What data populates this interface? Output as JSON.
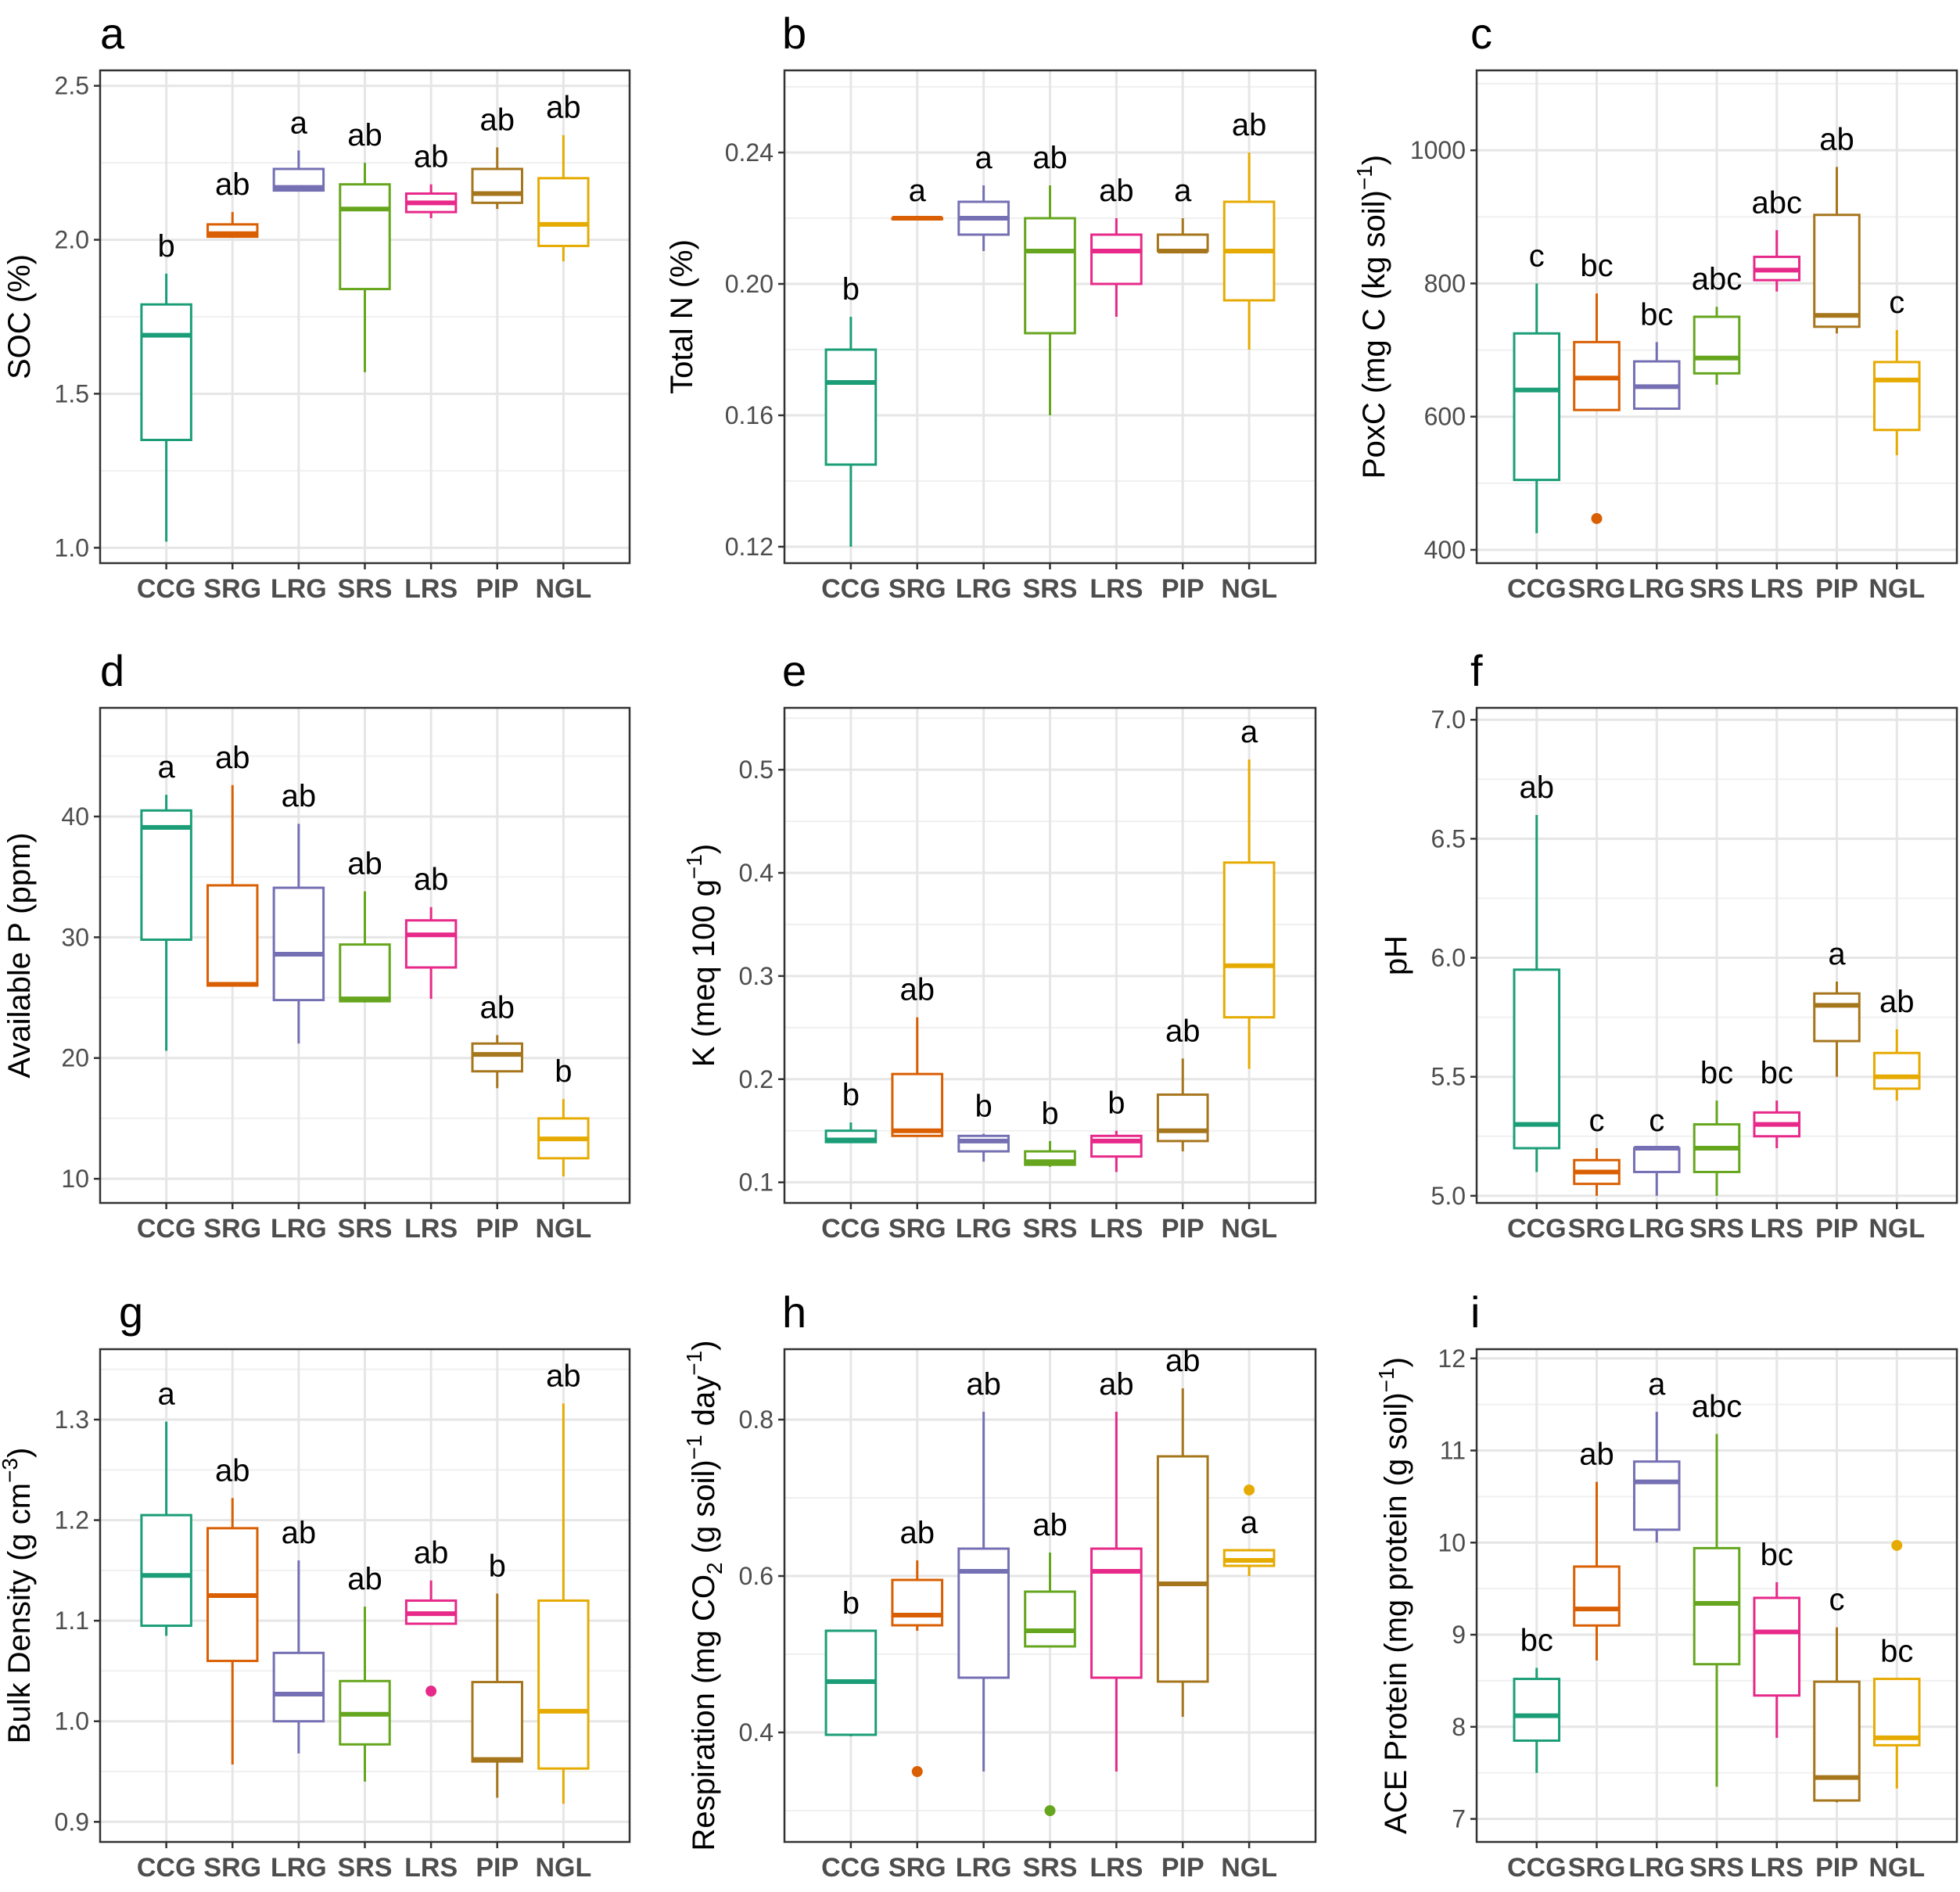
{
  "groups": [
    "CCG",
    "SRG",
    "LRG",
    "SRS",
    "LRS",
    "PIP",
    "NGL"
  ],
  "colors": [
    "#1b9e77",
    "#d95f02",
    "#7570b3",
    "#66a61e",
    "#e7298a",
    "#a6761d",
    "#e6ab02"
  ],
  "chart_data": [
    {
      "type": "boxplot",
      "panel_label": "a",
      "ylabel": "SOC (%)",
      "ylim": [
        0.95,
        2.55
      ],
      "yticks": [
        1.0,
        1.5,
        2.0,
        2.5
      ],
      "ytick_labels": [
        "1.0",
        "1.5",
        "2.0",
        "2.5"
      ],
      "categories": [
        "CCG",
        "SRG",
        "LRG",
        "SRS",
        "LRS",
        "PIP",
        "NGL"
      ],
      "boxes": [
        {
          "low": 1.02,
          "q1": 1.35,
          "median": 1.69,
          "q3": 1.79,
          "high": 1.89,
          "outliers": []
        },
        {
          "low": 2.01,
          "q1": 2.01,
          "median": 2.02,
          "q3": 2.05,
          "high": 2.09,
          "outliers": []
        },
        {
          "low": 2.16,
          "q1": 2.16,
          "median": 2.17,
          "q3": 2.23,
          "high": 2.29,
          "outliers": []
        },
        {
          "low": 1.57,
          "q1": 1.84,
          "median": 2.1,
          "q3": 2.18,
          "high": 2.25,
          "outliers": []
        },
        {
          "low": 2.07,
          "q1": 2.09,
          "median": 2.12,
          "q3": 2.15,
          "high": 2.18,
          "outliers": []
        },
        {
          "low": 2.1,
          "q1": 2.12,
          "median": 2.15,
          "q3": 2.23,
          "high": 2.3,
          "outliers": []
        },
        {
          "low": 1.93,
          "q1": 1.98,
          "median": 2.05,
          "q3": 2.2,
          "high": 2.34,
          "outliers": []
        }
      ],
      "letters": [
        "b",
        "ab",
        "a",
        "ab",
        "ab",
        "ab",
        "ab"
      ]
    },
    {
      "type": "boxplot",
      "panel_label": "b",
      "ylabel": "Total N (%)",
      "ylim": [
        0.115,
        0.265
      ],
      "yticks": [
        0.12,
        0.16,
        0.2,
        0.24
      ],
      "ytick_labels": [
        "0.12",
        "0.16",
        "0.20",
        "0.24"
      ],
      "categories": [
        "CCG",
        "SRG",
        "LRG",
        "SRS",
        "LRS",
        "PIP",
        "NGL"
      ],
      "boxes": [
        {
          "low": 0.12,
          "q1": 0.145,
          "median": 0.17,
          "q3": 0.18,
          "high": 0.19,
          "outliers": []
        },
        {
          "low": 0.22,
          "q1": 0.22,
          "median": 0.22,
          "q3": 0.22,
          "high": 0.22,
          "outliers": []
        },
        {
          "low": 0.21,
          "q1": 0.215,
          "median": 0.22,
          "q3": 0.225,
          "high": 0.23,
          "outliers": []
        },
        {
          "low": 0.16,
          "q1": 0.185,
          "median": 0.21,
          "q3": 0.22,
          "high": 0.23,
          "outliers": []
        },
        {
          "low": 0.19,
          "q1": 0.2,
          "median": 0.21,
          "q3": 0.215,
          "high": 0.22,
          "outliers": []
        },
        {
          "low": 0.21,
          "q1": 0.21,
          "median": 0.21,
          "q3": 0.215,
          "high": 0.22,
          "outliers": []
        },
        {
          "low": 0.18,
          "q1": 0.195,
          "median": 0.21,
          "q3": 0.225,
          "high": 0.24,
          "outliers": []
        }
      ],
      "letters": [
        "b",
        "a",
        "a",
        "ab",
        "ab",
        "a",
        "ab"
      ]
    },
    {
      "type": "boxplot",
      "panel_label": "c",
      "ylabel": "PoxC (mg C (kg soil)",
      "ylabel_sup": "−1",
      "ylabel_tail": ")",
      "ylim": [
        380,
        1120
      ],
      "yticks": [
        400,
        600,
        800,
        1000
      ],
      "ytick_labels": [
        "400",
        "600",
        "800",
        "1000"
      ],
      "categories": [
        "CCG",
        "SRG",
        "LRG",
        "SRS",
        "LRS",
        "PIP",
        "NGL"
      ],
      "boxes": [
        {
          "low": 425,
          "q1": 505,
          "median": 640,
          "q3": 725,
          "high": 800,
          "outliers": []
        },
        {
          "low": 610,
          "q1": 610,
          "median": 658,
          "q3": 712,
          "high": 785,
          "outliers": [
            447
          ]
        },
        {
          "low": 612,
          "q1": 612,
          "median": 645,
          "q3": 683,
          "high": 712,
          "outliers": []
        },
        {
          "low": 648,
          "q1": 665,
          "median": 688,
          "q3": 750,
          "high": 765,
          "outliers": []
        },
        {
          "low": 788,
          "q1": 805,
          "median": 820,
          "q3": 840,
          "high": 880,
          "outliers": []
        },
        {
          "low": 725,
          "q1": 735,
          "median": 752,
          "q3": 903,
          "high": 975,
          "outliers": []
        },
        {
          "low": 542,
          "q1": 580,
          "median": 655,
          "q3": 682,
          "high": 730,
          "outliers": []
        }
      ],
      "letters": [
        "c",
        "bc",
        "bc",
        "abc",
        "abc",
        "ab",
        "c"
      ]
    },
    {
      "type": "boxplot",
      "panel_label": "d",
      "ylabel": "Available P (ppm)",
      "ylim": [
        8,
        49
      ],
      "yticks": [
        10,
        20,
        30,
        40
      ],
      "ytick_labels": [
        "10",
        "20",
        "30",
        "40"
      ],
      "categories": [
        "CCG",
        "SRG",
        "LRG",
        "SRS",
        "LRS",
        "PIP",
        "NGL"
      ],
      "boxes": [
        {
          "low": 20.6,
          "q1": 29.8,
          "median": 39.1,
          "q3": 40.5,
          "high": 41.8,
          "outliers": []
        },
        {
          "low": 26.0,
          "q1": 26.0,
          "median": 26.1,
          "q3": 34.3,
          "high": 42.6,
          "outliers": []
        },
        {
          "low": 21.2,
          "q1": 24.8,
          "median": 28.6,
          "q3": 34.1,
          "high": 39.4,
          "outliers": []
        },
        {
          "low": 24.6,
          "q1": 24.7,
          "median": 24.9,
          "q3": 29.4,
          "high": 33.8,
          "outliers": []
        },
        {
          "low": 24.9,
          "q1": 27.5,
          "median": 30.2,
          "q3": 31.4,
          "high": 32.5,
          "outliers": []
        },
        {
          "low": 17.5,
          "q1": 18.9,
          "median": 20.3,
          "q3": 21.2,
          "high": 21.9,
          "outliers": []
        },
        {
          "low": 10.2,
          "q1": 11.7,
          "median": 13.3,
          "q3": 15.0,
          "high": 16.6,
          "outliers": []
        }
      ],
      "letters": [
        "a",
        "ab",
        "ab",
        "ab",
        "ab",
        "ab",
        "b"
      ]
    },
    {
      "type": "boxplot",
      "panel_label": "e",
      "ylabel": "K (meq 100 g",
      "ylabel_sup": "−1",
      "ylabel_tail": ")",
      "ylim": [
        0.08,
        0.56
      ],
      "yticks": [
        0.1,
        0.2,
        0.3,
        0.4,
        0.5
      ],
      "ytick_labels": [
        "0.1",
        "0.2",
        "0.3",
        "0.4",
        "0.5"
      ],
      "categories": [
        "CCG",
        "SRG",
        "LRG",
        "SRS",
        "LRS",
        "PIP",
        "NGL"
      ],
      "boxes": [
        {
          "low": 0.138,
          "q1": 0.139,
          "median": 0.141,
          "q3": 0.15,
          "high": 0.158,
          "outliers": []
        },
        {
          "low": 0.145,
          "q1": 0.145,
          "median": 0.15,
          "q3": 0.205,
          "high": 0.26,
          "outliers": []
        },
        {
          "low": 0.12,
          "q1": 0.13,
          "median": 0.14,
          "q3": 0.145,
          "high": 0.147,
          "outliers": []
        },
        {
          "low": 0.115,
          "q1": 0.117,
          "median": 0.12,
          "q3": 0.13,
          "high": 0.14,
          "outliers": []
        },
        {
          "low": 0.11,
          "q1": 0.125,
          "median": 0.14,
          "q3": 0.145,
          "high": 0.15,
          "outliers": []
        },
        {
          "low": 0.13,
          "q1": 0.14,
          "median": 0.15,
          "q3": 0.185,
          "high": 0.22,
          "outliers": []
        },
        {
          "low": 0.21,
          "q1": 0.26,
          "median": 0.31,
          "q3": 0.41,
          "high": 0.51,
          "outliers": []
        }
      ],
      "letters": [
        "b",
        "ab",
        "b",
        "b",
        "b",
        "ab",
        "a"
      ]
    },
    {
      "type": "boxplot",
      "panel_label": "f",
      "ylabel": "pH",
      "ylim": [
        4.97,
        7.05
      ],
      "yticks": [
        5.0,
        5.5,
        6.0,
        6.5,
        7.0
      ],
      "ytick_labels": [
        "5.0",
        "5.5",
        "6.0",
        "6.5",
        "7.0"
      ],
      "categories": [
        "CCG",
        "SRG",
        "LRG",
        "SRS",
        "LRS",
        "PIP",
        "NGL"
      ],
      "boxes": [
        {
          "low": 5.1,
          "q1": 5.2,
          "median": 5.3,
          "q3": 5.95,
          "high": 6.6,
          "outliers": []
        },
        {
          "low": 5.0,
          "q1": 5.05,
          "median": 5.1,
          "q3": 5.15,
          "high": 5.2,
          "outliers": []
        },
        {
          "low": 5.0,
          "q1": 5.1,
          "median": 5.2,
          "q3": 5.2,
          "high": 5.2,
          "outliers": []
        },
        {
          "low": 5.0,
          "q1": 5.1,
          "median": 5.2,
          "q3": 5.3,
          "high": 5.4,
          "outliers": []
        },
        {
          "low": 5.2,
          "q1": 5.25,
          "median": 5.3,
          "q3": 5.35,
          "high": 5.4,
          "outliers": []
        },
        {
          "low": 5.5,
          "q1": 5.65,
          "median": 5.8,
          "q3": 5.85,
          "high": 5.9,
          "outliers": []
        },
        {
          "low": 5.4,
          "q1": 5.45,
          "median": 5.5,
          "q3": 5.6,
          "high": 5.7,
          "outliers": []
        }
      ],
      "letters": [
        "ab",
        "c",
        "c",
        "bc",
        "bc",
        "a",
        "ab"
      ]
    },
    {
      "type": "boxplot",
      "panel_label": "g",
      "ylabel": "Bulk Density (g cm",
      "ylabel_sup": "−3",
      "ylabel_tail": ")",
      "ylim": [
        0.88,
        1.37
      ],
      "yticks": [
        0.9,
        1.0,
        1.1,
        1.2,
        1.3
      ],
      "ytick_labels": [
        "0.9",
        "1.0",
        "1.1",
        "1.2",
        "1.3"
      ],
      "categories": [
        "CCG",
        "SRG",
        "LRG",
        "SRS",
        "LRS",
        "PIP",
        "NGL"
      ],
      "boxes": [
        {
          "low": 1.085,
          "q1": 1.095,
          "median": 1.145,
          "q3": 1.205,
          "high": 1.298,
          "outliers": []
        },
        {
          "low": 0.957,
          "q1": 1.06,
          "median": 1.125,
          "q3": 1.192,
          "high": 1.222,
          "outliers": []
        },
        {
          "low": 0.968,
          "q1": 1.0,
          "median": 1.027,
          "q3": 1.068,
          "high": 1.16,
          "outliers": []
        },
        {
          "low": 0.94,
          "q1": 0.977,
          "median": 1.007,
          "q3": 1.04,
          "high": 1.114,
          "outliers": []
        },
        {
          "low": 1.097,
          "q1": 1.097,
          "median": 1.107,
          "q3": 1.12,
          "high": 1.14,
          "outliers": [
            1.03
          ]
        },
        {
          "low": 0.924,
          "q1": 0.96,
          "median": 0.962,
          "q3": 1.039,
          "high": 1.127,
          "outliers": []
        },
        {
          "low": 0.918,
          "q1": 0.953,
          "median": 1.01,
          "q3": 1.12,
          "high": 1.316,
          "outliers": []
        }
      ],
      "letters": [
        "a",
        "ab",
        "ab",
        "ab",
        "ab",
        "b",
        "ab"
      ]
    },
    {
      "type": "boxplot",
      "panel_label": "h",
      "ylabel": "Respiration (mg CO",
      "ylabel_sub": "2",
      "ylabel_mid": " (g soil)",
      "ylabel_sup": "−1",
      "ylabel_tail": " day",
      "ylabel_sup2": "−1",
      "ylabel_end": ")",
      "ylim": [
        0.26,
        0.89
      ],
      "yticks": [
        0.4,
        0.6,
        0.8
      ],
      "ytick_labels": [
        "0.4",
        "0.6",
        "0.8"
      ],
      "categories": [
        "CCG",
        "SRG",
        "LRG",
        "SRS",
        "LRS",
        "PIP",
        "NGL"
      ],
      "boxes": [
        {
          "low": 0.395,
          "q1": 0.397,
          "median": 0.465,
          "q3": 0.53,
          "high": 0.53,
          "outliers": []
        },
        {
          "low": 0.53,
          "q1": 0.537,
          "median": 0.55,
          "q3": 0.595,
          "high": 0.62,
          "outliers": [
            0.35
          ]
        },
        {
          "low": 0.35,
          "q1": 0.47,
          "median": 0.606,
          "q3": 0.635,
          "high": 0.81,
          "outliers": []
        },
        {
          "low": 0.51,
          "q1": 0.51,
          "median": 0.53,
          "q3": 0.58,
          "high": 0.63,
          "outliers": [
            0.3
          ]
        },
        {
          "low": 0.35,
          "q1": 0.47,
          "median": 0.606,
          "q3": 0.635,
          "high": 0.81,
          "outliers": []
        },
        {
          "low": 0.42,
          "q1": 0.465,
          "median": 0.59,
          "q3": 0.753,
          "high": 0.84,
          "outliers": []
        },
        {
          "low": 0.6,
          "q1": 0.613,
          "median": 0.62,
          "q3": 0.633,
          "high": 0.633,
          "outliers": [
            0.71
          ]
        }
      ],
      "letters": [
        "b",
        "ab",
        "ab",
        "ab",
        "ab",
        "ab",
        "a"
      ]
    },
    {
      "type": "boxplot",
      "panel_label": "i",
      "ylabel": "ACE Protein (mg protein (g soil)",
      "ylabel_sup": "−1",
      "ylabel_tail": ")",
      "ylim": [
        6.75,
        12.1
      ],
      "yticks": [
        7,
        8,
        9,
        10,
        11,
        12
      ],
      "ytick_labels": [
        "7",
        "8",
        "9",
        "10",
        "11",
        "12"
      ],
      "categories": [
        "CCG",
        "SRG",
        "LRG",
        "SRS",
        "LRS",
        "PIP",
        "NGL"
      ],
      "boxes": [
        {
          "low": 7.5,
          "q1": 7.85,
          "median": 8.12,
          "q3": 8.52,
          "high": 8.64,
          "outliers": []
        },
        {
          "low": 8.72,
          "q1": 9.1,
          "median": 9.28,
          "q3": 9.74,
          "high": 10.66,
          "outliers": []
        },
        {
          "low": 10.0,
          "q1": 10.14,
          "median": 10.66,
          "q3": 10.88,
          "high": 11.42,
          "outliers": []
        },
        {
          "low": 7.35,
          "q1": 8.68,
          "median": 9.34,
          "q3": 9.94,
          "high": 11.18,
          "outliers": []
        },
        {
          "low": 7.88,
          "q1": 8.34,
          "median": 9.03,
          "q3": 9.4,
          "high": 9.57,
          "outliers": []
        },
        {
          "low": 7.18,
          "q1": 7.2,
          "median": 7.45,
          "q3": 8.49,
          "high": 9.08,
          "outliers": []
        },
        {
          "low": 7.33,
          "q1": 7.8,
          "median": 7.88,
          "q3": 8.52,
          "high": 8.52,
          "outliers": [
            9.97
          ]
        }
      ],
      "letters": [
        "bc",
        "ab",
        "a",
        "abc",
        "bc",
        "c",
        "bc"
      ]
    }
  ]
}
